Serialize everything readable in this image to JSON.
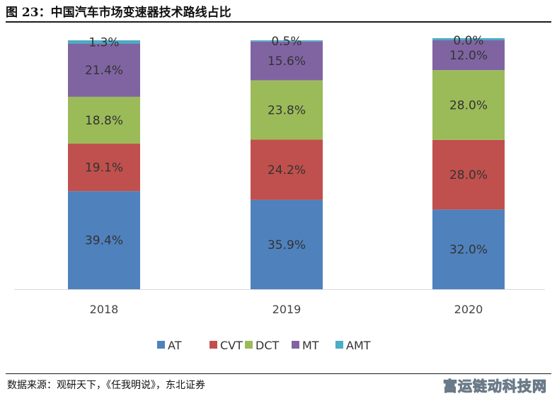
{
  "header": {
    "title": "图 23：中国汽车市场变速器技术路线占比"
  },
  "footer": {
    "source": "数据来源：观研天下，《任我明说》，东北证券",
    "watermark": "富运链动科技网"
  },
  "chart_data": {
    "type": "bar",
    "stacked": true,
    "categories": [
      "2018",
      "2019",
      "2020"
    ],
    "series": [
      {
        "name": "AT",
        "color": "#4f81bd",
        "values": [
          39.4,
          35.9,
          32.0
        ],
        "labels": [
          "39.4%",
          "35.9%",
          "32.0%"
        ]
      },
      {
        "name": "CVT",
        "color": "#c0504d",
        "values": [
          19.1,
          24.2,
          28.0
        ],
        "labels": [
          "19.1%",
          "24.2%",
          "28.0%"
        ]
      },
      {
        "name": "DCT",
        "color": "#9bbb59",
        "values": [
          18.8,
          23.8,
          28.0
        ],
        "labels": [
          "18.8%",
          "23.8%",
          "28.0%"
        ]
      },
      {
        "name": "MT",
        "color": "#8064a2",
        "values": [
          21.4,
          15.6,
          12.0
        ],
        "labels": [
          "21.4%",
          "15.6%",
          "12.0%"
        ]
      },
      {
        "name": "AMT",
        "color": "#4bacc6",
        "values": [
          1.3,
          0.5,
          0.0
        ],
        "labels": [
          "1.3%",
          "0.5%",
          "0.0%"
        ]
      }
    ],
    "ylim": [
      0,
      100
    ],
    "grid": false,
    "legend_position": "bottom"
  }
}
